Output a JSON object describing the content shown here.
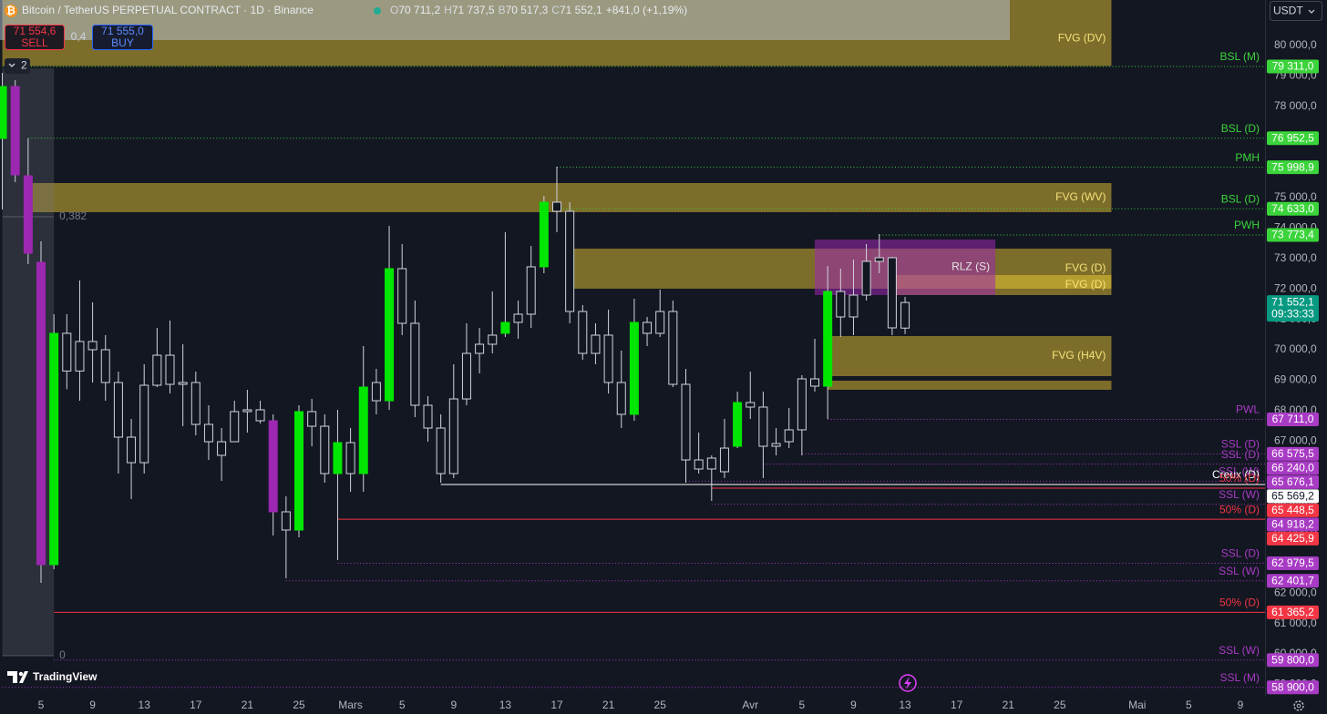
{
  "header": {
    "symbol": "Bitcoin / TetherUS PERPETUAL CONTRACT · 1D · Binance",
    "ohlc": [
      {
        "key": "O",
        "value": "70 711,2"
      },
      {
        "key": "H",
        "value": "71 737,5"
      },
      {
        "key": "B",
        "value": "70 517,3"
      },
      {
        "key": "C",
        "value": "71 552,1"
      }
    ],
    "change": "+841,0 (+1,19%)",
    "sell": {
      "price": "71 554,6",
      "label": "SELL"
    },
    "spread": "0,4",
    "buy": {
      "price": "71 555,0",
      "label": "BUY"
    },
    "indicator_count": "2",
    "currency": "USDT",
    "brand": "TradingView"
  },
  "chart_data": {
    "type": "candlestick",
    "categories": [
      null,
      null,
      null,
      "5",
      null,
      null,
      null,
      "9",
      null,
      null,
      null,
      "13",
      null,
      null,
      null,
      "17",
      null,
      null,
      null,
      "21",
      null,
      null,
      null,
      "25",
      null,
      null,
      null,
      "Mars",
      null,
      null,
      null,
      "5",
      null,
      null,
      null,
      "9",
      null,
      null,
      null,
      "13",
      null,
      null,
      null,
      "17",
      null,
      null,
      null,
      "21",
      null,
      null,
      null,
      "25",
      null,
      null,
      null,
      null,
      null,
      null,
      "Avr",
      null,
      null,
      null,
      "5",
      null,
      null,
      null,
      "9",
      null,
      null,
      null,
      "13",
      null,
      null,
      null,
      "17",
      null,
      null,
      null,
      "21",
      null,
      null,
      null,
      "25",
      null,
      null,
      null,
      null,
      null,
      "Mai",
      null,
      null,
      null,
      "5",
      null,
      null,
      null,
      "9"
    ],
    "open": [
      76946,
      78653,
      75718,
      72874,
      62934,
      70539,
      69300,
      70270,
      70000,
      68922,
      67126,
      66287,
      68832,
      69820,
      68862,
      68922,
      67545,
      66527,
      66975,
      67965,
      68025,
      67665,
      64671,
      64072,
      67965,
      67485,
      65928,
      66946,
      65928,
      68323,
      68323,
      72665,
      70868,
      68174,
      67425,
      65928,
      68383,
      69880,
      70180,
      70539,
      70898,
      71168,
      72725,
      74850,
      74551,
      71257,
      69880,
      70479,
      68922,
      67875,
      70898,
      70539,
      71257,
      68862,
      66377,
      66078,
      65988,
      66826,
      68264,
      68114,
      66826,
      66976,
      67366,
      69042,
      68802,
      71916,
      71078,
      71796,
      72904,
      73024,
      70711.2,
      null,
      null,
      null,
      null,
      null,
      null,
      null,
      null,
      null,
      null,
      null,
      null,
      null,
      null,
      null,
      null,
      null,
      null,
      null,
      null,
      null,
      null,
      null,
      null,
      null,
      null
    ],
    "high": [
      79102,
      78862,
      76946,
      73563,
      71168,
      71168,
      72276,
      71557,
      70479,
      69281,
      67725,
      69521,
      70719,
      70958,
      70180,
      69281,
      68174,
      67425,
      68323,
      68683,
      68323,
      67875,
      65180,
      68174,
      68383,
      67875,
      68025,
      67425,
      70120,
      69371,
      74072,
      73473,
      71617,
      68473,
      67875,
      69521,
      70868,
      70719,
      71917,
      73862,
      71617,
      73413,
      75060,
      76018,
      74850,
      71467,
      70868,
      71317,
      69970,
      71677,
      71078,
      71976,
      71617,
      69371,
      67276,
      66527,
      67725,
      68623,
      69281,
      68623,
      67425,
      68084,
      69162,
      70360,
      72754,
      72665,
      72964,
      73473,
      73803,
      73054,
      71737.5,
      null,
      null,
      null,
      null,
      null,
      null,
      null,
      null,
      null,
      null,
      null,
      null,
      null,
      null,
      null,
      null,
      null,
      null,
      null,
      null,
      null,
      null,
      null,
      null,
      null,
      null
    ],
    "low": [
      74611,
      75509,
      72814,
      62335,
      62785,
      68700,
      68323,
      68922,
      68323,
      65928,
      65090,
      65928,
      68772,
      68562,
      67485,
      67186,
      66377,
      65689,
      66975,
      67276,
      67575,
      63892,
      62485,
      63832,
      66826,
      65629,
      63085,
      65330,
      65330,
      67875,
      68025,
      70479,
      67785,
      66976,
      65629,
      65779,
      68174,
      69221,
      69880,
      70419,
      70360,
      70719,
      72515,
      73862,
      70868,
      69671,
      69521,
      68562,
      67425,
      67665,
      70120,
      70419,
      68772,
      65629,
      65928,
      65030,
      65779,
      66766,
      67725,
      65779,
      66527,
      66766,
      66527,
      68623,
      67725,
      70419,
      70479,
      71617,
      72515,
      70479,
      70517.3,
      null,
      null,
      null,
      null,
      null,
      null,
      null,
      null,
      null,
      null,
      null,
      null,
      null,
      null,
      null,
      null,
      null,
      null,
      null,
      null,
      null,
      null,
      null,
      null,
      null,
      null
    ],
    "close": [
      78653,
      75748,
      73174,
      62934,
      70539,
      69300,
      70270,
      70000,
      68922,
      67126,
      66287,
      68832,
      69820,
      68862,
      68922,
      67545,
      66975,
      66975,
      67965,
      68025,
      67665,
      64671,
      64072,
      67965,
      67485,
      65928,
      66946,
      65928,
      68772,
      68922,
      72665,
      70868,
      68174,
      67425,
      65928,
      68383,
      69880,
      70180,
      70479,
      70898,
      71168,
      72725,
      74850,
      74551,
      71257,
      69880,
      70479,
      68922,
      67875,
      70898,
      70539,
      71257,
      68862,
      66377,
      66078,
      66437,
      66766,
      68264,
      68114,
      66826,
      66916,
      67366,
      69042,
      68802,
      71916,
      71078,
      71796,
      72904,
      73024,
      70719,
      71552.1,
      null,
      null,
      null,
      null,
      null,
      null,
      null,
      null,
      null,
      null,
      null,
      null,
      null,
      null,
      null,
      null,
      null,
      null,
      null,
      null,
      null,
      null,
      null,
      null,
      null,
      null
    ],
    "colors": [
      "#00e600",
      "#9c27b0",
      "#9c27b0",
      "#9c27b0",
      "#00e600",
      "#131722",
      "#131722",
      "#131722",
      "#131722",
      "#131722",
      "#131722",
      "#131722",
      "#131722",
      "#131722",
      "#131722",
      "#131722",
      "#131722",
      "#131722",
      "#131722",
      "#131722",
      "#131722",
      "#9c27b0",
      "#131722",
      "#00e600",
      "#131722",
      "#131722",
      "#00e600",
      "#131722",
      "#00e600",
      "#131722",
      "#00e600",
      "#131722",
      "#131722",
      "#131722",
      "#131722",
      "#131722",
      "#131722",
      "#131722",
      "#131722",
      "#00e600",
      "#131722",
      "#131722",
      "#00e600",
      "#131722",
      "#131722",
      "#131722",
      "#131722",
      "#131722",
      "#131722",
      "#00e600",
      "#131722",
      "#131722",
      "#131722",
      "#131722",
      "#131722",
      "#131722",
      "#131722",
      "#00e600",
      "#131722",
      "#131722",
      "#131722",
      "#131722",
      "#131722",
      "#131722",
      "#00e600",
      "#131722",
      "#131722",
      "#131722",
      "#131722",
      "#131722",
      "#131722",
      null,
      null,
      null,
      null,
      null,
      null,
      null,
      null,
      null,
      null,
      null,
      null,
      null,
      null,
      null,
      null,
      null,
      null,
      null,
      null,
      null,
      null,
      null,
      null,
      null,
      null
    ],
    "hollow": "#131722",
    "outline": "#d1d4dc",
    "ylim": [
      58623,
      81497
    ],
    "yticks": [
      {
        "value": 59000,
        "label": "59 000,0"
      },
      {
        "value": 60000,
        "label": "60 000,0"
      },
      {
        "value": 61000,
        "label": "61 000,0"
      },
      {
        "value": 62000,
        "label": "62 000,0"
      },
      {
        "value": 63000,
        "label": "63 000,0"
      },
      {
        "value": 64000,
        "label": "64 000,0"
      },
      {
        "value": 65000,
        "label": "65 000,0"
      },
      {
        "value": 66000,
        "label": "66 000,0"
      },
      {
        "value": 67000,
        "label": "67 000,0"
      },
      {
        "value": 68000,
        "label": "68 000,0"
      },
      {
        "value": 69000,
        "label": "69 000,0"
      },
      {
        "value": 70000,
        "label": "70 000,0"
      },
      {
        "value": 71000,
        "label": "71 000,0"
      },
      {
        "value": 72000,
        "label": "72 000,0"
      },
      {
        "value": 73000,
        "label": "73 000,0"
      },
      {
        "value": 74000,
        "label": "74 000,0"
      },
      {
        "value": 75000,
        "label": "75 000,0"
      },
      {
        "value": 76000,
        "label": "76 000,0"
      },
      {
        "value": 77000,
        "label": "77 000,0"
      },
      {
        "value": 78000,
        "label": "78 000,0"
      },
      {
        "value": 79000,
        "label": "79 000,0"
      },
      {
        "value": 80000,
        "label": "80 000,0"
      }
    ],
    "zones": [
      {
        "label": "FVG (DV)",
        "from": 0,
        "to": 86,
        "top": 81800,
        "bottom": 79330,
        "color": "#fdd835",
        "label_color": "#f5e27a"
      },
      {
        "label": "FVG (WV)",
        "from": 2,
        "to": 86,
        "top": 75479,
        "bottom": 74521,
        "color": "#fdd835",
        "label_color": "#f5e27a"
      },
      {
        "label": "FVG (D)",
        "from": 44,
        "to": 86,
        "top": 73323,
        "bottom": 72006,
        "color": "#fdd835",
        "label_color": "#f5e27a"
      },
      {
        "label": "FVG (D)",
        "from": 69,
        "to": 86,
        "top": 72455,
        "bottom": 71797,
        "color": "#fdd835",
        "label_color": "#f5e27a"
      },
      {
        "label": "RLZ (S)",
        "from": 63,
        "to": 77,
        "top": 73623,
        "bottom": 71797,
        "color": "#9c27b0",
        "label_color": "#e6e6e6"
      },
      {
        "label": "FVG (H4V)",
        "from": 64,
        "to": 86,
        "top": 70449,
        "bottom": 69132,
        "color": "#fdd835",
        "label_color": "#f5e27a"
      },
      {
        "from": 64,
        "to": 86,
        "top": 68982,
        "bottom": 68683,
        "color": "#fdd835"
      }
    ],
    "fib": {
      "from": 0,
      "to": 4,
      "top": 79250,
      "bottom": 59940,
      "color": "#787b86",
      "levels": [
        {
          "value": 74371,
          "label": "0,382"
        },
        {
          "value": 59940,
          "label": "0"
        }
      ]
    },
    "levels": [
      {
        "label": "BSL (M)",
        "value": 79311,
        "value_label": "79 311,0",
        "from": 0,
        "color": "#3bd43b",
        "style": "dotted"
      },
      {
        "label": "BSL (D)",
        "value": 76952.5,
        "value_label": "76 952,5",
        "from": 2,
        "color": "#3bd43b",
        "style": "dotted"
      },
      {
        "label": "PMH",
        "value": 75998.9,
        "value_label": "75 998,9",
        "from": 43,
        "color": "#3bd43b",
        "style": "dotted"
      },
      {
        "label": "BSL (D)",
        "value": 74633,
        "value_label": "74 633,0",
        "from": 43,
        "color": "#3bd43b",
        "style": "dotted"
      },
      {
        "label": "PWH",
        "value": 73773.4,
        "value_label": "73 773,4",
        "from": 68,
        "color": "#3bd43b",
        "style": "dotted"
      },
      {
        "label": "PWL",
        "value": 67711,
        "value_label": "67 711,0",
        "from": 64,
        "color": "#a83bc4",
        "style": "dotted"
      },
      {
        "label": "SSL (D)",
        "value": 66575.5,
        "value_label": "66 575,5",
        "from": 62,
        "color": "#a83bc4",
        "style": "dotted"
      },
      {
        "label": "SSL (D)",
        "value": 66240,
        "value_label": "66 240,0",
        "from": 59,
        "color": "#a83bc4",
        "style": "dotted"
      },
      {
        "label": "SSL (W)",
        "value": 65676.1,
        "value_label": "65 676,1",
        "from": 53,
        "color": "#a83bc4",
        "style": "dotted"
      },
      {
        "label": "Creux (D)",
        "value": 65569.2,
        "value_label": "65 569,2",
        "from": 34,
        "color": "#ffffff",
        "style": "solid"
      },
      {
        "label": "50% (D)",
        "value": 65448.5,
        "value_label": "65 448,5",
        "from": 55,
        "color": "#f23645",
        "style": "solid"
      },
      {
        "label": "SSL (W)",
        "value": 64918.2,
        "value_label": "64 918,2",
        "from": 55,
        "color": "#a83bc4",
        "style": "dotted"
      },
      {
        "label": "50% (D)",
        "value": 64425.9,
        "value_label": "64 425,9",
        "from": 26,
        "color": "#f23645",
        "style": "solid"
      },
      {
        "label": "SSL (D)",
        "value": 62979.5,
        "value_label": "62 979,5",
        "from": 26,
        "color": "#a83bc4",
        "style": "dotted"
      },
      {
        "label": "SSL (W)",
        "value": 62401.7,
        "value_label": "62 401,7",
        "from": 22,
        "color": "#a83bc4",
        "style": "dotted"
      },
      {
        "label": "50% (D)",
        "value": 61365.2,
        "value_label": "61 365,2",
        "from": 4,
        "color": "#f23645",
        "style": "solid"
      },
      {
        "label": "SSL (W)",
        "value": 59800,
        "value_label": "59 800,0",
        "from": 4,
        "color": "#a83bc4",
        "style": "dotted"
      },
      {
        "label": "SSL (M)",
        "value": 58900,
        "value_label": "58 900,0",
        "from": 0,
        "color": "#a83bc4",
        "style": "dotted"
      }
    ],
    "last_price": {
      "value": 71552.1,
      "value_label": "71 552,1",
      "countdown": "09:33:33",
      "color": "#089981"
    }
  }
}
